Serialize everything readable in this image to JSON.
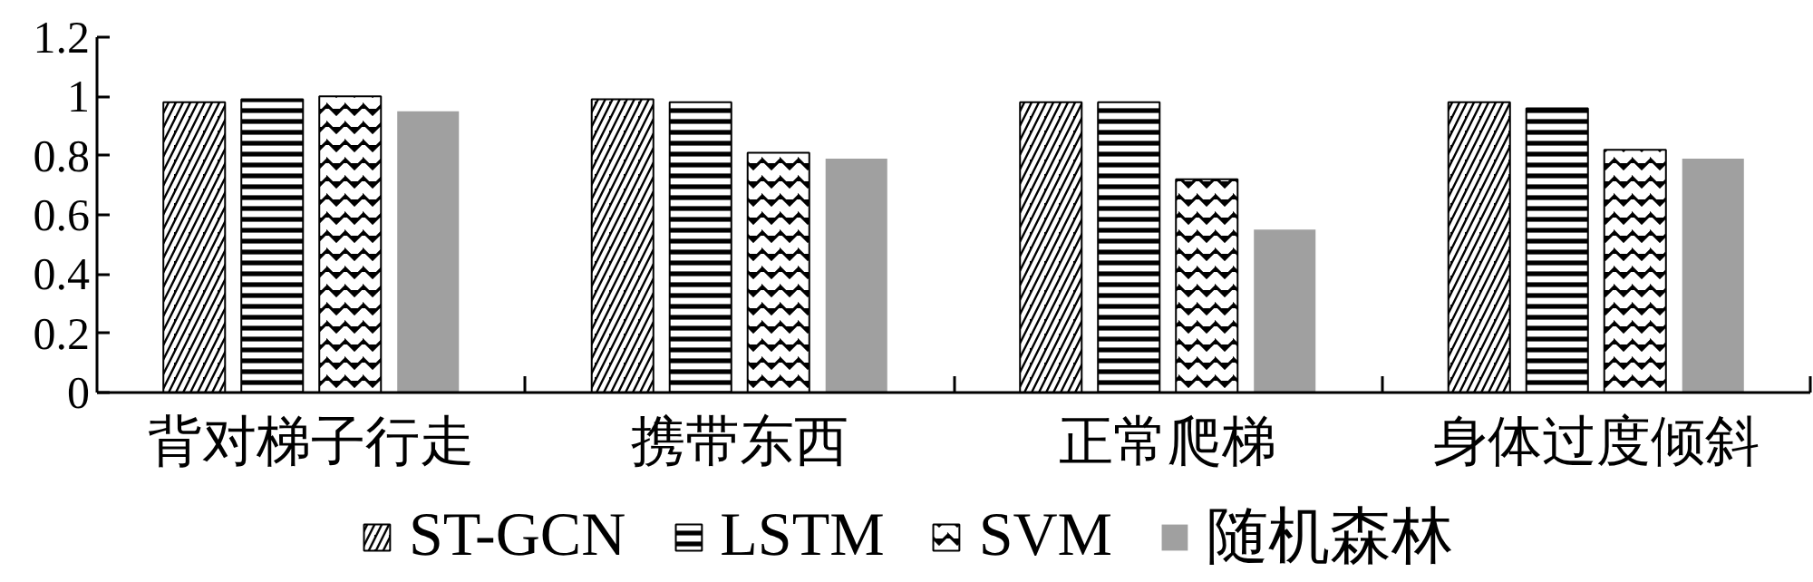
{
  "chart_data": {
    "type": "bar",
    "categories": [
      "背对梯子行走",
      "携带东西",
      "正常爬梯",
      "身体过度倾斜"
    ],
    "series": [
      {
        "name": "ST-GCN",
        "color": "#000000",
        "values": [
          0.98,
          0.99,
          0.98,
          0.98
        ]
      },
      {
        "name": "LSTM",
        "color": "#000000",
        "values": [
          0.99,
          0.98,
          0.98,
          0.96
        ]
      },
      {
        "name": "SVM",
        "color": "#000000",
        "values": [
          1.0,
          0.81,
          0.72,
          0.82
        ]
      },
      {
        "name": "随机森林",
        "color": "#a0a0a0",
        "values": [
          0.95,
          0.79,
          0.55,
          0.79
        ]
      }
    ],
    "ylim": [
      0,
      1.2
    ],
    "yticks": [
      0,
      0.2,
      0.4,
      0.6,
      0.8,
      1,
      1.2
    ],
    "legend": "bottom"
  }
}
